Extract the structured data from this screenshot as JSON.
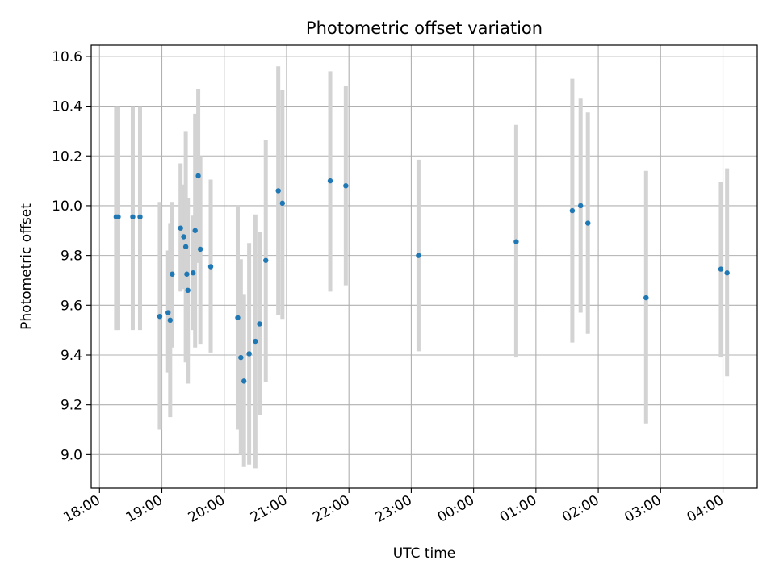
{
  "chart_data": {
    "type": "scatter",
    "title": "Photometric offset variation",
    "xlabel": "UTC time",
    "ylabel": "Photometric offset",
    "xlim": [
      "17:52",
      "04:33"
    ],
    "ylim": [
      8.865,
      10.645
    ],
    "x_ticks": [
      "18:00",
      "19:00",
      "20:00",
      "21:00",
      "22:00",
      "23:00",
      "00:00",
      "01:00",
      "02:00",
      "03:00",
      "04:00"
    ],
    "y_ticks": [
      "9.0",
      "9.2",
      "9.4",
      "9.6",
      "9.8",
      "10.0",
      "10.2",
      "10.4",
      "10.6"
    ],
    "grid": true,
    "point_color": "#1f77b4",
    "errorbar_color": "#d3d3d3",
    "points": [
      {
        "t": "18:16",
        "y": 9.955,
        "lo": 9.5,
        "hi": 10.4
      },
      {
        "t": "18:18",
        "y": 9.955,
        "lo": 9.5,
        "hi": 10.4
      },
      {
        "t": "18:32",
        "y": 9.955,
        "lo": 9.5,
        "hi": 10.4
      },
      {
        "t": "18:39",
        "y": 9.955,
        "lo": 9.5,
        "hi": 10.4
      },
      {
        "t": "18:58",
        "y": 9.555,
        "lo": 9.1,
        "hi": 10.015
      },
      {
        "t": "19:06",
        "y": 9.57,
        "lo": 9.33,
        "hi": 9.82
      },
      {
        "t": "19:08",
        "y": 9.54,
        "lo": 9.15,
        "hi": 9.93
      },
      {
        "t": "19:10",
        "y": 9.725,
        "lo": 9.43,
        "hi": 10.015
      },
      {
        "t": "19:18",
        "y": 9.91,
        "lo": 9.655,
        "hi": 10.17
      },
      {
        "t": "19:21",
        "y": 9.875,
        "lo": 9.665,
        "hi": 10.085
      },
      {
        "t": "19:23",
        "y": 9.835,
        "lo": 9.37,
        "hi": 10.3
      },
      {
        "t": "19:24",
        "y": 9.725,
        "lo": 9.52,
        "hi": 9.93
      },
      {
        "t": "19:25",
        "y": 9.66,
        "lo": 9.285,
        "hi": 10.03
      },
      {
        "t": "19:30",
        "y": 9.73,
        "lo": 9.5,
        "hi": 9.96
      },
      {
        "t": "19:32",
        "y": 9.9,
        "lo": 9.43,
        "hi": 10.37
      },
      {
        "t": "19:35",
        "y": 10.12,
        "lo": 9.77,
        "hi": 10.47
      },
      {
        "t": "19:37",
        "y": 9.825,
        "lo": 9.445,
        "hi": 10.2
      },
      {
        "t": "19:47",
        "y": 9.755,
        "lo": 9.41,
        "hi": 10.105
      },
      {
        "t": "20:13",
        "y": 9.55,
        "lo": 9.1,
        "hi": 10.0
      },
      {
        "t": "20:16",
        "y": 9.39,
        "lo": 9.0,
        "hi": 9.785
      },
      {
        "t": "20:19",
        "y": 9.295,
        "lo": 8.95,
        "hi": 9.645
      },
      {
        "t": "20:24",
        "y": 9.405,
        "lo": 8.96,
        "hi": 9.85
      },
      {
        "t": "20:30",
        "y": 9.455,
        "lo": 8.945,
        "hi": 9.965
      },
      {
        "t": "20:34",
        "y": 9.525,
        "lo": 9.16,
        "hi": 9.895
      },
      {
        "t": "20:40",
        "y": 9.78,
        "lo": 9.29,
        "hi": 10.265
      },
      {
        "t": "20:52",
        "y": 10.06,
        "lo": 9.56,
        "hi": 10.56
      },
      {
        "t": "20:56",
        "y": 10.01,
        "lo": 9.545,
        "hi": 10.465
      },
      {
        "t": "21:42",
        "y": 10.1,
        "lo": 9.655,
        "hi": 10.54
      },
      {
        "t": "21:57",
        "y": 10.08,
        "lo": 9.68,
        "hi": 10.48
      },
      {
        "t": "23:07",
        "y": 9.8,
        "lo": 9.415,
        "hi": 10.185
      },
      {
        "t": "00:41",
        "y": 9.855,
        "lo": 9.39,
        "hi": 10.325
      },
      {
        "t": "01:35",
        "y": 9.98,
        "lo": 9.45,
        "hi": 10.51
      },
      {
        "t": "01:43",
        "y": 10.0,
        "lo": 9.57,
        "hi": 10.43
      },
      {
        "t": "01:50",
        "y": 9.93,
        "lo": 9.485,
        "hi": 10.375
      },
      {
        "t": "02:46",
        "y": 9.63,
        "lo": 9.125,
        "hi": 10.14
      },
      {
        "t": "03:58",
        "y": 9.745,
        "lo": 9.39,
        "hi": 10.095
      },
      {
        "t": "04:04",
        "y": 9.73,
        "lo": 9.315,
        "hi": 10.15
      }
    ]
  }
}
